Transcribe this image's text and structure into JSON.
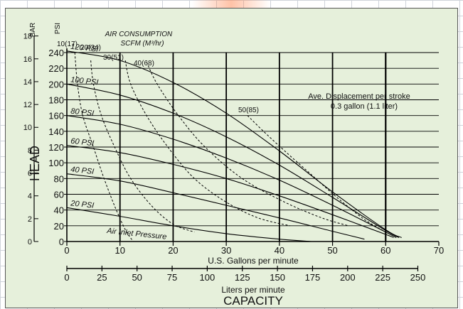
{
  "chart_data": {
    "type": "line",
    "annotation_air": {
      "line1": "AIR CONSUMPTION",
      "line2": "SCFM (M³/hr)"
    },
    "annotation_displacement": {
      "line1": "Ave. Displacement per stroke",
      "line2": "0.3 gallon (1.1 liter)"
    },
    "y_label": "HEAD",
    "y_unit_bar": "BAR",
    "y_unit_psi": "PSI",
    "x_label_gpm": "U.S. Gallons per minute",
    "x_label_lpm": "Liters per minute",
    "x_label_main": "CAPACITY",
    "air_inlet_label": "Air Inlet Pressure",
    "x_ticks_gpm": [
      0,
      10,
      20,
      30,
      40,
      50,
      60,
      70
    ],
    "x_ticks_lpm": [
      0,
      25,
      50,
      75,
      100,
      125,
      150,
      175,
      200,
      225,
      250
    ],
    "y_ticks_psi": [
      0,
      20,
      40,
      60,
      80,
      100,
      120,
      140,
      160,
      180,
      200,
      220,
      240
    ],
    "y_ticks_bar": [
      0,
      2,
      4,
      6,
      8,
      10,
      12,
      14,
      16,
      18
    ],
    "xlim_gpm": [
      0,
      70
    ],
    "ylim_psi": [
      0,
      240
    ],
    "pressure_series": [
      {
        "name": "120 PSI",
        "x": [
          0,
          10,
          20,
          30,
          40,
          50,
          60,
          63
        ],
        "y": [
          242,
          230,
          202,
          163,
          115,
          63,
          15,
          5
        ]
      },
      {
        "name": "100 PSI",
        "x": [
          0,
          10,
          20,
          30,
          40,
          50,
          60,
          62.5
        ],
        "y": [
          200,
          186,
          163,
          133,
          97,
          56,
          14,
          5
        ]
      },
      {
        "name": "80 PSI",
        "x": [
          0,
          10,
          20,
          30,
          40,
          50,
          60,
          62
        ],
        "y": [
          160,
          149,
          130,
          106,
          78,
          46,
          12,
          5
        ]
      },
      {
        "name": "60 PSI",
        "x": [
          0,
          10,
          20,
          30,
          40,
          50,
          60,
          61.5
        ],
        "y": [
          122,
          113,
          98,
          80,
          58,
          34,
          9,
          5
        ]
      },
      {
        "name": "40 PSI",
        "x": [
          0,
          10,
          20,
          30,
          40,
          50,
          56
        ],
        "y": [
          86,
          77,
          62,
          46,
          30,
          13,
          3
        ]
      },
      {
        "name": "20 PSI",
        "x": [
          0,
          10,
          20,
          30,
          40,
          46
        ],
        "y": [
          43,
          32,
          20,
          10,
          3,
          0
        ]
      }
    ],
    "air_series": [
      {
        "name": "10(17)",
        "x": [
          1.5,
          2,
          3,
          5,
          7,
          9,
          11,
          12.5
        ],
        "y": [
          240,
          200,
          160,
          120,
          80,
          45,
          15,
          0
        ]
      },
      {
        "name": "20(34)",
        "x": [
          4.5,
          5,
          6.5,
          9,
          12,
          16,
          20,
          24
        ],
        "y": [
          230,
          200,
          160,
          120,
          80,
          45,
          22,
          12
        ]
      },
      {
        "name": "30(51)",
        "x": [
          11,
          12,
          15,
          19,
          24,
          30,
          36,
          42
        ],
        "y": [
          230,
          200,
          160,
          120,
          80,
          50,
          30,
          20
        ]
      },
      {
        "name": "40(68)",
        "x": [
          15,
          17,
          21,
          26,
          33,
          41,
          48,
          53
        ],
        "y": [
          228,
          200,
          160,
          120,
          80,
          50,
          30,
          20
        ]
      },
      {
        "name": "50(85)",
        "x": [
          34,
          37,
          41,
          46,
          51,
          56,
          60
        ],
        "y": [
          160,
          140,
          115,
          85,
          55,
          28,
          12
        ]
      }
    ]
  }
}
